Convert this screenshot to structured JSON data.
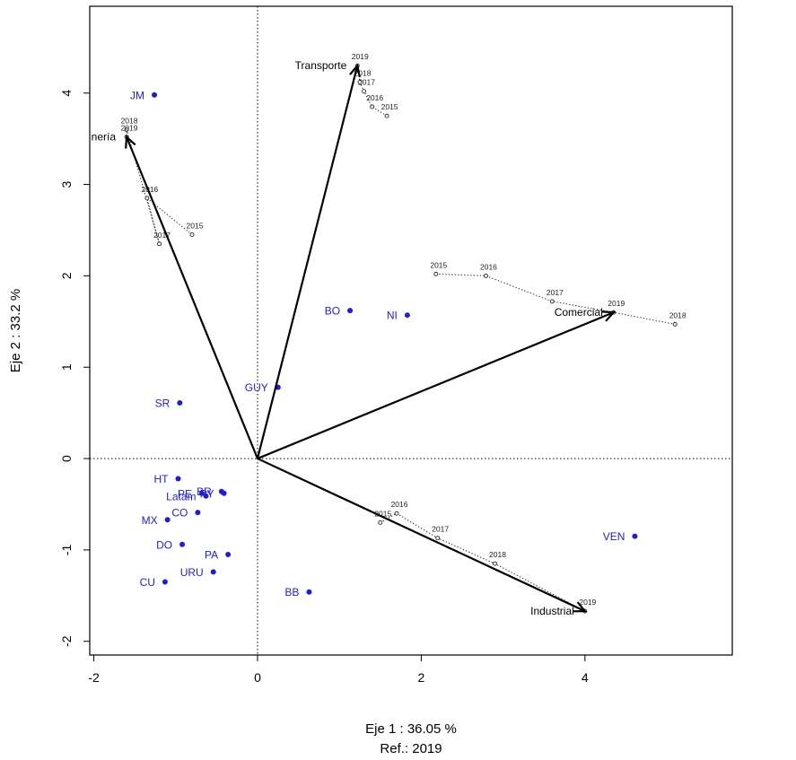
{
  "chart_data": {
    "type": "scatter",
    "xlabel": "Eje 1 :  36.05 %",
    "xlabel_ref": "Ref.:  2019",
    "ylabel": "Eje 2 :  33.2 %",
    "xlim": [
      -2.05,
      5.8
    ],
    "ylim": [
      -2.15,
      4.95
    ],
    "x_ticks": [
      -2,
      0,
      2,
      4
    ],
    "y_ticks": [
      -2,
      -1,
      0,
      1,
      2,
      3,
      4
    ],
    "reference_lines": {
      "x": 0,
      "y": 0,
      "style": "dotted"
    },
    "point_color": "#1f1fd0",
    "points": [
      {
        "label": "JM",
        "x": -1.26,
        "y": 3.98
      },
      {
        "label": "BO",
        "x": 1.13,
        "y": 1.62
      },
      {
        "label": "NI",
        "x": 1.83,
        "y": 1.57
      },
      {
        "label": "GUY",
        "x": 0.25,
        "y": 0.78
      },
      {
        "label": "SR",
        "x": -0.95,
        "y": 0.61
      },
      {
        "label": "HT",
        "x": -0.97,
        "y": -0.22
      },
      {
        "label": "PE",
        "x": -0.68,
        "y": -0.38
      },
      {
        "label": "BR",
        "x": -0.44,
        "y": -0.36
      },
      {
        "label": "PY",
        "x": -0.41,
        "y": -0.38
      },
      {
        "label": "Latam",
        "x": -0.63,
        "y": -0.41
      },
      {
        "label": "CO",
        "x": -0.73,
        "y": -0.59
      },
      {
        "label": "MX",
        "x": -1.1,
        "y": -0.67
      },
      {
        "label": "DO",
        "x": -0.92,
        "y": -0.94
      },
      {
        "label": "PA",
        "x": -0.36,
        "y": -1.05
      },
      {
        "label": "URU",
        "x": -0.54,
        "y": -1.24
      },
      {
        "label": "CU",
        "x": -1.13,
        "y": -1.35
      },
      {
        "label": "BB",
        "x": 0.63,
        "y": -1.46
      },
      {
        "label": "VEN",
        "x": 4.61,
        "y": -0.85
      }
    ],
    "vectors": [
      {
        "label": "Minería",
        "display": "nería",
        "x": -1.6,
        "y": 3.52,
        "trajectory": [
          {
            "year": "2015",
            "x": -0.8,
            "y": 2.45
          },
          {
            "year": "2016",
            "x": -1.35,
            "y": 2.85
          },
          {
            "year": "2017",
            "x": -1.2,
            "y": 2.35
          },
          {
            "year": "2018",
            "x": -1.6,
            "y": 3.6
          },
          {
            "year": "2019",
            "x": -1.6,
            "y": 3.52
          }
        ]
      },
      {
        "label": "Transporte",
        "x": 1.22,
        "y": 4.3,
        "trajectory": [
          {
            "year": "2015",
            "x": 1.58,
            "y": 3.75
          },
          {
            "year": "2016",
            "x": 1.4,
            "y": 3.85
          },
          {
            "year": "2017",
            "x": 1.3,
            "y": 4.02
          },
          {
            "year": "2018",
            "x": 1.25,
            "y": 4.12
          },
          {
            "year": "2019",
            "x": 1.22,
            "y": 4.3
          }
        ]
      },
      {
        "label": "Comercial",
        "x": 4.35,
        "y": 1.6,
        "trajectory": [
          {
            "year": "2015",
            "x": 2.18,
            "y": 2.02
          },
          {
            "year": "2016",
            "x": 2.79,
            "y": 2.0
          },
          {
            "year": "2017",
            "x": 3.6,
            "y": 1.72
          },
          {
            "year": "2019",
            "x": 4.35,
            "y": 1.6
          },
          {
            "year": "2018",
            "x": 5.1,
            "y": 1.47
          }
        ]
      },
      {
        "label": "Industrial",
        "x": 4.0,
        "y": -1.67,
        "trajectory": [
          {
            "year": "2015",
            "x": 1.5,
            "y": -0.7
          },
          {
            "year": "2016",
            "x": 1.7,
            "y": -0.6
          },
          {
            "year": "2017",
            "x": 2.2,
            "y": -0.87
          },
          {
            "year": "2018",
            "x": 2.9,
            "y": -1.15
          },
          {
            "year": "2019",
            "x": 4.0,
            "y": -1.67
          }
        ]
      }
    ]
  }
}
